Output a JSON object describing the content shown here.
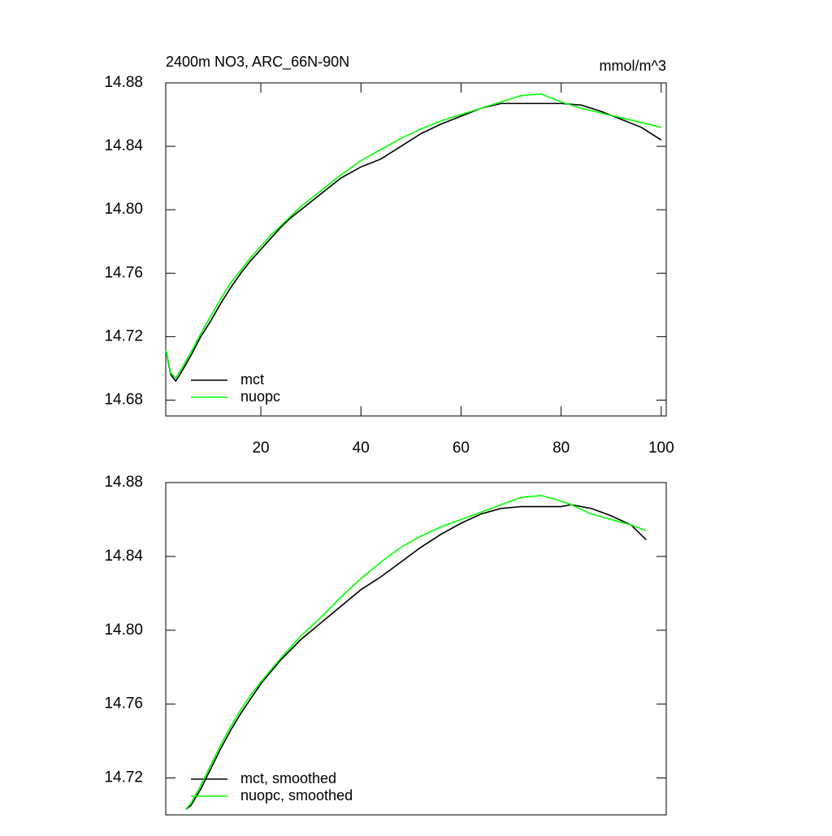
{
  "chart_data": [
    {
      "type": "line",
      "title": "2400m NO3, ARC_66N-90N",
      "units": "mmol/m^3",
      "x": [
        1,
        2,
        3,
        4,
        6,
        8,
        10,
        12,
        14,
        16,
        18,
        20,
        22,
        24,
        26,
        28,
        30,
        32,
        34,
        36,
        40,
        44,
        48,
        52,
        56,
        60,
        64,
        68,
        72,
        76,
        80,
        84,
        88,
        92,
        96,
        100
      ],
      "series": [
        {
          "name": "mct",
          "color": "#000000",
          "values": [
            14.712,
            14.696,
            14.692,
            14.697,
            14.708,
            14.72,
            14.73,
            14.741,
            14.751,
            14.76,
            14.768,
            14.775,
            14.782,
            14.789,
            14.795,
            14.8,
            14.805,
            14.81,
            14.815,
            14.82,
            14.827,
            14.832,
            14.84,
            14.848,
            14.854,
            14.859,
            14.864,
            14.867,
            14.867,
            14.867,
            14.867,
            14.866,
            14.862,
            14.857,
            14.852,
            14.844
          ]
        },
        {
          "name": "nuopc",
          "color": "#00ff00",
          "values": [
            14.712,
            14.697,
            14.694,
            14.699,
            14.71,
            14.722,
            14.733,
            14.744,
            14.754,
            14.762,
            14.77,
            14.777,
            14.784,
            14.79,
            14.796,
            14.802,
            14.807,
            14.812,
            14.817,
            14.822,
            14.831,
            14.838,
            14.845,
            14.851,
            14.856,
            14.86,
            14.864,
            14.868,
            14.872,
            14.873,
            14.868,
            14.864,
            14.861,
            14.858,
            14.855,
            14.852
          ]
        }
      ],
      "xlim": [
        1,
        101
      ],
      "xticks": [
        20,
        40,
        60,
        80,
        100
      ],
      "ylim": [
        14.67,
        14.88
      ],
      "yticks": [
        14.68,
        14.72,
        14.76,
        {
          "value": 14.8,
          "label": "14.80"
        },
        14.84,
        14.88
      ],
      "legend": "lower left"
    },
    {
      "type": "line",
      "x": [
        5,
        6,
        8,
        10,
        12,
        14,
        16,
        18,
        20,
        24,
        28,
        32,
        36,
        40,
        44,
        48,
        52,
        56,
        60,
        64,
        68,
        72,
        76,
        80,
        82,
        86,
        90,
        94,
        97
      ],
      "series": [
        {
          "name": "mct, smoothed",
          "color": "#000000",
          "values": [
            14.703,
            14.705,
            14.714,
            14.725,
            14.736,
            14.746,
            14.755,
            14.763,
            14.771,
            14.784,
            14.795,
            14.804,
            14.813,
            14.822,
            14.829,
            14.837,
            14.845,
            14.852,
            14.858,
            14.863,
            14.866,
            14.867,
            14.867,
            14.867,
            14.868,
            14.866,
            14.862,
            14.857,
            14.849
          ]
        },
        {
          "name": "nuopc, smoothed",
          "color": "#00ff00",
          "values": [
            14.703,
            14.706,
            14.716,
            14.727,
            14.738,
            14.748,
            14.757,
            14.765,
            14.772,
            14.785,
            14.797,
            14.807,
            14.818,
            14.828,
            14.837,
            14.845,
            14.851,
            14.856,
            14.86,
            14.864,
            14.868,
            14.872,
            14.873,
            14.87,
            14.868,
            14.863,
            14.86,
            14.857,
            14.854
          ]
        }
      ],
      "xlim": [
        1,
        101
      ],
      "ylim": [
        14.7,
        14.88
      ],
      "yticks": [
        14.72,
        14.76,
        {
          "value": 14.8,
          "label": "14.80"
        },
        14.84,
        14.88
      ],
      "legend": "lower left"
    }
  ]
}
